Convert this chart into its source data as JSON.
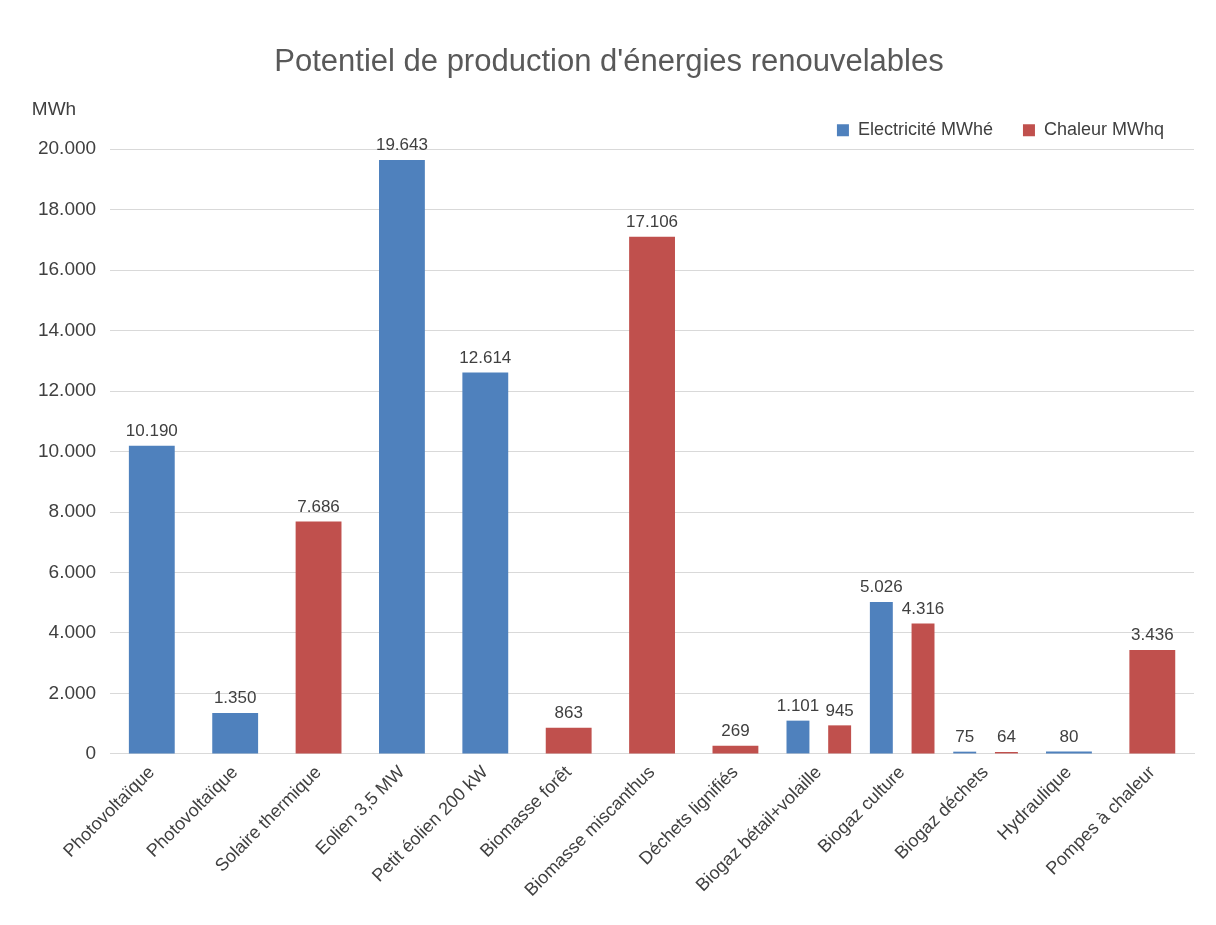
{
  "chart_data": {
    "type": "bar",
    "title": "Potentiel de production d'énergies renouvelables",
    "ylabel": "MWh",
    "categories": [
      "Photovoltaïque",
      "Photovoltaïque",
      "Solaire thermique",
      "Eolien 3,5 MW",
      "Petit éolien 200 kW",
      "Biomasse forêt",
      "Biomasse miscanthus",
      "Déchets lignifiés",
      "Biogaz bétail+volaille",
      "Biogaz culture",
      "Biogaz déchets",
      "Hydraulique",
      "Pompes à chaleur"
    ],
    "series": [
      {
        "name": "Electricité MWhé",
        "color": "#4f81bd",
        "values": [
          10190,
          1350,
          null,
          19643,
          12614,
          null,
          null,
          null,
          1101,
          5026,
          75,
          80,
          null
        ],
        "value_labels": [
          "10.190",
          "1.350",
          null,
          "19.643",
          "12.614",
          null,
          null,
          null,
          "1.101",
          "5.026",
          "75",
          "80",
          null
        ]
      },
      {
        "name": "Chaleur MWhq",
        "color": "#c0504d",
        "values": [
          null,
          null,
          7686,
          null,
          null,
          863,
          17106,
          269,
          945,
          4316,
          64,
          null,
          3436
        ],
        "value_labels": [
          null,
          null,
          "7.686",
          null,
          null,
          "863",
          "17.106",
          "269",
          "945",
          "4.316",
          "64",
          null,
          "3.436"
        ]
      }
    ],
    "ylim": [
      0,
      20000
    ],
    "yticks": [
      {
        "value": 0,
        "label": "0"
      },
      {
        "value": 2000,
        "label": "2.000"
      },
      {
        "value": 4000,
        "label": "4.000"
      },
      {
        "value": 6000,
        "label": "6.000"
      },
      {
        "value": 8000,
        "label": "8.000"
      },
      {
        "value": 10000,
        "label": "10.000"
      },
      {
        "value": 12000,
        "label": "12.000"
      },
      {
        "value": 14000,
        "label": "14.000"
      },
      {
        "value": 16000,
        "label": "16.000"
      },
      {
        "value": 18000,
        "label": "18.000"
      },
      {
        "value": 20000,
        "label": "20.000"
      }
    ],
    "grid": "y",
    "legend": "top right"
  }
}
